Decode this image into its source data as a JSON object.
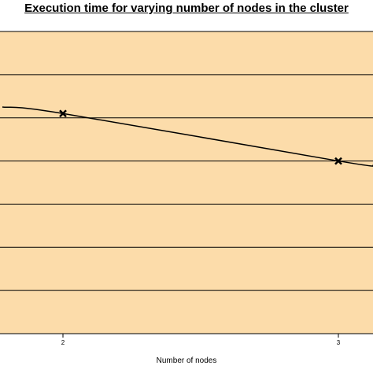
{
  "chart_data": {
    "type": "line",
    "title": "Execution time for varying number of nodes in the cluster",
    "xlabel": "Number of nodes",
    "ylabel": "",
    "x_ticks": [
      "2",
      "3"
    ],
    "x": [
      2,
      3
    ],
    "series": [
      {
        "values": [
          5.1,
          4.0
        ],
        "marker": "x",
        "color": "#000000"
      }
    ],
    "curve_extent": {
      "x_start": 1.78,
      "y_start": 5.25,
      "x_end": 3.13,
      "y_end": 3.9
    },
    "ylim": [
      0,
      7
    ],
    "grid": true,
    "plot_background": "#FCDCAA",
    "legend": "none"
  }
}
